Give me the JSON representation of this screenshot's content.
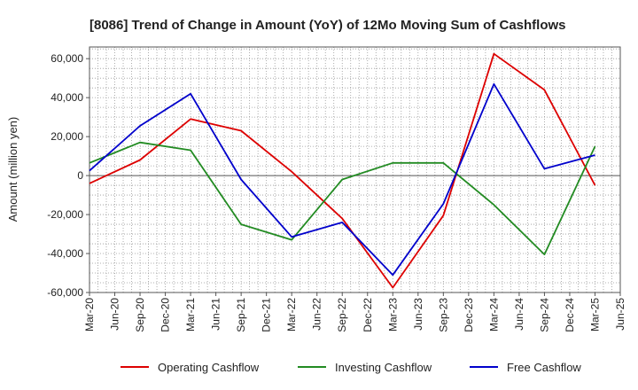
{
  "chart_data": {
    "type": "line",
    "title": "[8086]  Trend of Change in Amount (YoY) of 12Mo Moving Sum of Cashflows",
    "xlabel": "",
    "ylabel": "Amount (million yen)",
    "ylim": [
      -60000,
      66000
    ],
    "yticks": [
      -60000,
      -40000,
      -20000,
      0,
      20000,
      40000,
      60000
    ],
    "ytick_labels": [
      "-60,000",
      "-40,000",
      "-20,000",
      "0",
      "20,000",
      "40,000",
      "60,000"
    ],
    "x_tick_labels": [
      "Mar-20",
      "Jun-20",
      "Sep-20",
      "Dec-20",
      "Mar-21",
      "Jun-21",
      "Sep-21",
      "Dec-21",
      "Mar-22",
      "Jun-22",
      "Sep-22",
      "Dec-22",
      "Mar-23",
      "Jun-23",
      "Sep-23",
      "Dec-23",
      "Mar-24",
      "Jun-24",
      "Sep-24",
      "Dec-24",
      "Mar-25",
      "Jun-25"
    ],
    "grid": true,
    "legend_position": "bottom",
    "series": [
      {
        "name": "Operating Cashflow",
        "color": "#dd0000",
        "points": [
          [
            "Mar-20",
            -4000
          ],
          [
            "Sep-20",
            8000
          ],
          [
            "Mar-21",
            29000
          ],
          [
            "Sep-21",
            23000
          ],
          [
            "Mar-22",
            2000
          ],
          [
            "Sep-22",
            -22000
          ],
          [
            "Mar-23",
            -57500
          ],
          [
            "Sep-23",
            -20500
          ],
          [
            "Mar-24",
            62500
          ],
          [
            "Sep-24",
            44000
          ],
          [
            "Mar-25",
            -5000
          ]
        ]
      },
      {
        "name": "Investing Cashflow",
        "color": "#228b22",
        "points": [
          [
            "Mar-20",
            6500
          ],
          [
            "Sep-20",
            17000
          ],
          [
            "Mar-21",
            13000
          ],
          [
            "Sep-21",
            -25000
          ],
          [
            "Mar-22",
            -33000
          ],
          [
            "Sep-22",
            -2000
          ],
          [
            "Mar-23",
            6500
          ],
          [
            "Sep-23",
            6500
          ],
          [
            "Mar-24",
            -15000
          ],
          [
            "Sep-24",
            -40500
          ],
          [
            "Mar-25",
            15000
          ]
        ]
      },
      {
        "name": "Free Cashflow",
        "color": "#0000cc",
        "points": [
          [
            "Mar-20",
            2500
          ],
          [
            "Sep-20",
            25500
          ],
          [
            "Mar-21",
            42000
          ],
          [
            "Sep-21",
            -2000
          ],
          [
            "Mar-22",
            -31500
          ],
          [
            "Sep-22",
            -24000
          ],
          [
            "Mar-23",
            -51000
          ],
          [
            "Sep-23",
            -14500
          ],
          [
            "Mar-24",
            47000
          ],
          [
            "Sep-24",
            3500
          ],
          [
            "Mar-25",
            10500
          ]
        ]
      }
    ]
  }
}
